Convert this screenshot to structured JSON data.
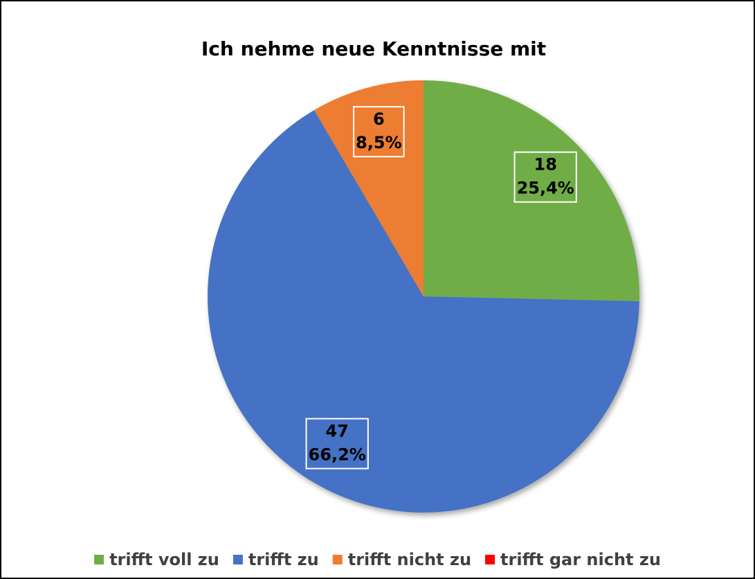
{
  "chart_data": {
    "type": "pie",
    "title": "Ich nehme neue Kenntnisse mit",
    "categories": [
      "trifft voll zu",
      "trifft zu",
      "trifft nicht zu",
      "trifft gar nicht zu"
    ],
    "values": [
      18,
      47,
      6,
      0
    ],
    "percent": [
      25.4,
      66.2,
      8.5,
      0
    ],
    "percent_labels": [
      "25,4%",
      "66,2%",
      "8,5%",
      null
    ],
    "colors": [
      "#70ad47",
      "#4472c4",
      "#ed7d31",
      "#ff0000"
    ],
    "legend": "bottom"
  }
}
